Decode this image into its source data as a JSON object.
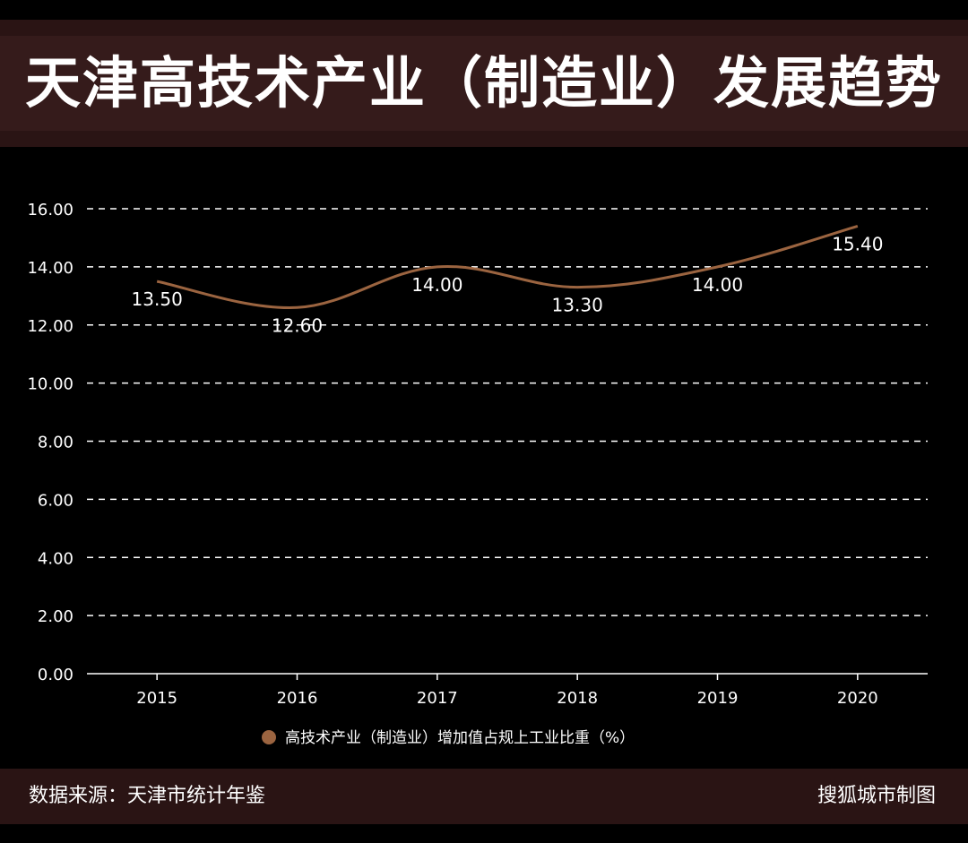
{
  "title": "天津高技术产业（制造业）发展趋势",
  "footer": {
    "source": "数据来源：天津市统计年鉴",
    "credit": "搜狐城市制图"
  },
  "colors": {
    "line": "#9b6440",
    "header_band": "#351b1b",
    "footer_band": "#2a1414"
  },
  "chart_data": {
    "type": "line",
    "categories": [
      "2015",
      "2016",
      "2017",
      "2018",
      "2019",
      "2020"
    ],
    "series": [
      {
        "name": "高技术产业（制造业）增加值占规上工业比重（%）",
        "values": [
          13.5,
          12.6,
          14.0,
          13.3,
          14.0,
          15.4
        ],
        "labels": [
          "13.50",
          "12.60",
          "14.00",
          "13.30",
          "14.00",
          "15.40"
        ]
      }
    ],
    "ylim": [
      0,
      16
    ],
    "yticks": [
      "0.00",
      "2.00",
      "4.00",
      "6.00",
      "8.00",
      "10.00",
      "12.00",
      "14.00",
      "16.00"
    ],
    "grid": true,
    "legend": "bottom"
  }
}
